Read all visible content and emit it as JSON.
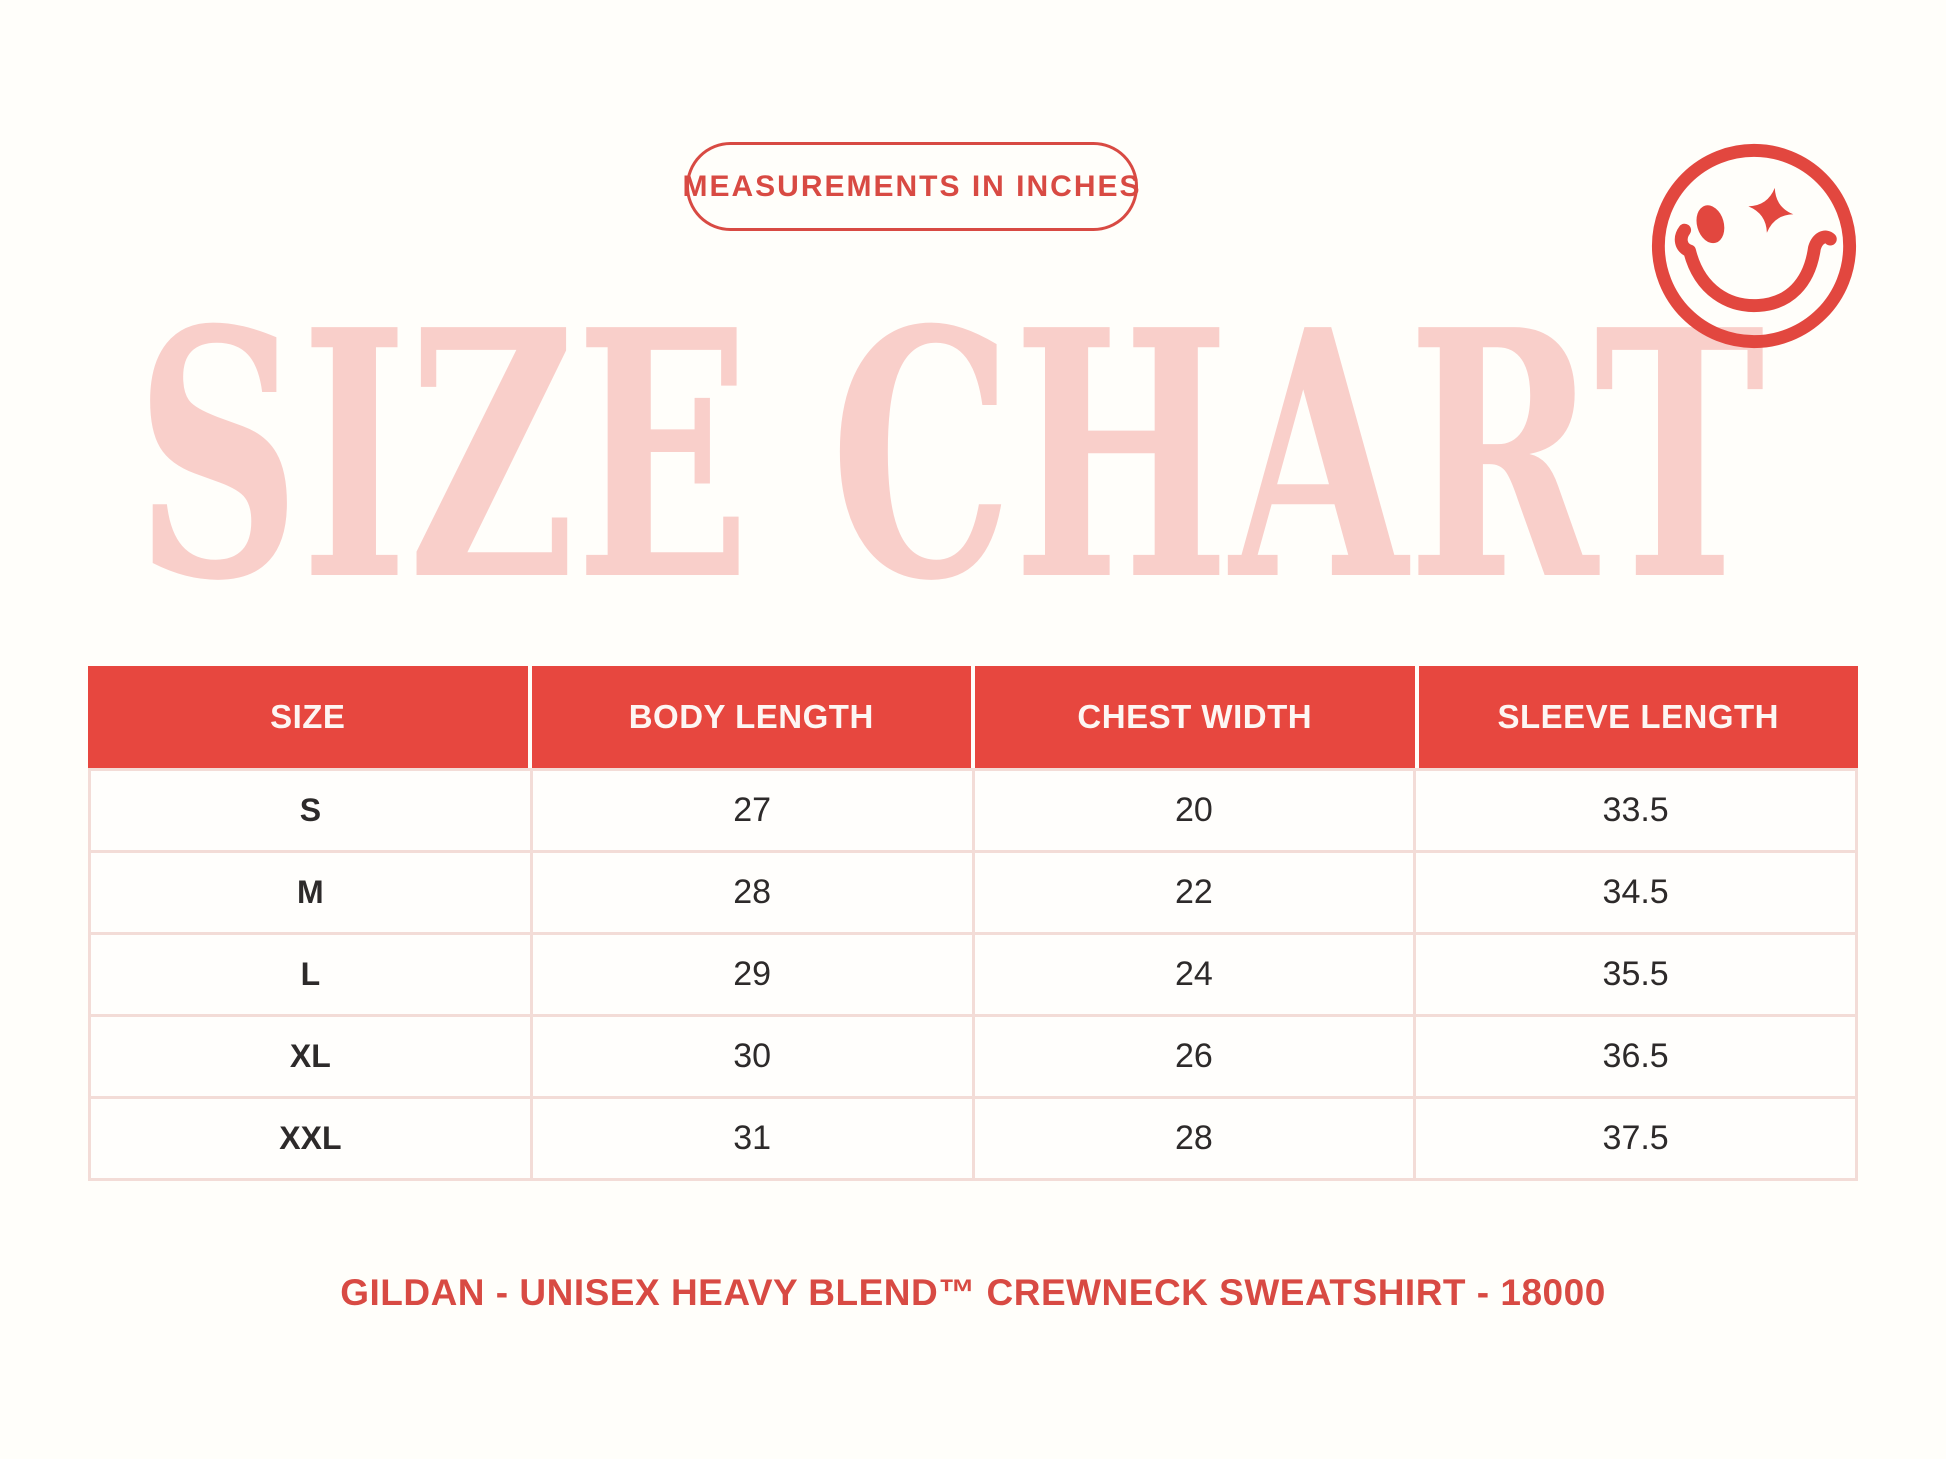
{
  "page": {
    "background": "#FFFEFA"
  },
  "colors": {
    "accent_red": "#D84A43",
    "header_red": "#E7473F",
    "smiley_red": "#E2473F",
    "title_pink": "#F9CFCA",
    "table_border_pink": "#F3DCD7",
    "text_dark": "#2D2A2A"
  },
  "badge": {
    "label": "MEASUREMENTS IN INCHES"
  },
  "title": {
    "text": "SIZE CHART"
  },
  "icons": {
    "smiley": "winking-smiley-face-with-sparkle-eye"
  },
  "table": {
    "headers": [
      "SIZE",
      "BODY LENGTH",
      "CHEST WIDTH",
      "SLEEVE LENGTH"
    ],
    "rows": [
      {
        "size": "S",
        "body_length": "27",
        "chest_width": "20",
        "sleeve_length": "33.5"
      },
      {
        "size": "M",
        "body_length": "28",
        "chest_width": "22",
        "sleeve_length": "34.5"
      },
      {
        "size": "L",
        "body_length": "29",
        "chest_width": "24",
        "sleeve_length": "35.5"
      },
      {
        "size": "XL",
        "body_length": "30",
        "chest_width": "26",
        "sleeve_length": "36.5"
      },
      {
        "size": "XXL",
        "body_length": "31",
        "chest_width": "28",
        "sleeve_length": "37.5"
      }
    ]
  },
  "footer": {
    "text": "GILDAN - UNISEX HEAVY BLEND™ CREWNECK SWEATSHIRT - 18000"
  },
  "chart_data": {
    "type": "table",
    "title": "SIZE CHART",
    "subtitle": "MEASUREMENTS IN INCHES",
    "columns": [
      "SIZE",
      "BODY LENGTH",
      "CHEST WIDTH",
      "SLEEVE LENGTH"
    ],
    "categories": [
      "S",
      "M",
      "L",
      "XL",
      "XXL"
    ],
    "series": [
      {
        "name": "BODY LENGTH",
        "values": [
          27,
          28,
          29,
          30,
          31
        ]
      },
      {
        "name": "CHEST WIDTH",
        "values": [
          20,
          22,
          24,
          26,
          28
        ]
      },
      {
        "name": "SLEEVE LENGTH",
        "values": [
          33.5,
          34.5,
          35.5,
          36.5,
          37.5
        ]
      }
    ],
    "units": "inches",
    "footnote": "GILDAN - UNISEX HEAVY BLEND™ CREWNECK SWEATSHIRT - 18000"
  }
}
